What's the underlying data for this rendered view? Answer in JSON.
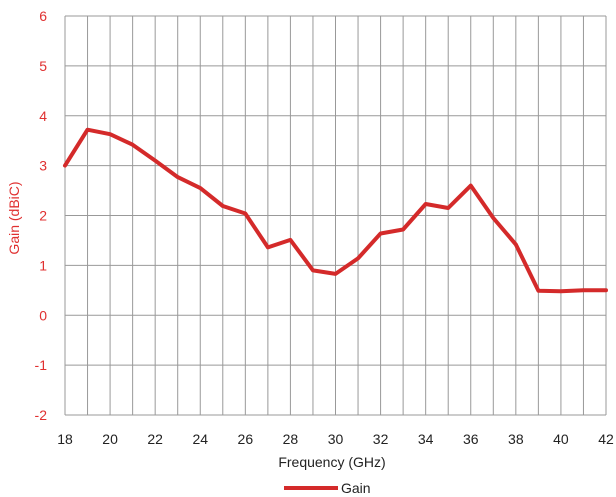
{
  "colors": {
    "series": "#d42a2a",
    "y_axis_text": "#e03030",
    "x_axis_text": "#222222",
    "grid": "#999999"
  },
  "chart_data": {
    "type": "line",
    "title": "",
    "xlabel": "Frequency (GHz)",
    "ylabel": "Gain (dBiC)",
    "xlim": [
      18,
      42
    ],
    "ylim": [
      -2,
      6
    ],
    "x_ticks": [
      18,
      20,
      22,
      24,
      26,
      28,
      30,
      32,
      34,
      36,
      38,
      40,
      42
    ],
    "x_tick_labels": [
      "18",
      "20",
      "22",
      "24",
      "26",
      "28",
      "30",
      "32",
      "34",
      "36",
      "38",
      "40",
      "42"
    ],
    "y_ticks": [
      -2,
      -1,
      0,
      1,
      2,
      3,
      4,
      5,
      6
    ],
    "y_tick_labels": [
      "-2",
      "-1",
      "0",
      "1",
      "2",
      "3",
      "4",
      "5",
      "6"
    ],
    "grid": true,
    "legend_position": "bottom",
    "series": [
      {
        "name": "Gain",
        "x": [
          18,
          19,
          20,
          21,
          22,
          23,
          24,
          25,
          26,
          27,
          28,
          29,
          30,
          31,
          32,
          33,
          34,
          35,
          36,
          37,
          38,
          39,
          40,
          41,
          42
        ],
        "y": [
          3.0,
          3.72,
          3.63,
          3.42,
          3.1,
          2.77,
          2.55,
          2.19,
          2.04,
          1.36,
          1.51,
          0.9,
          0.83,
          1.14,
          1.64,
          1.72,
          2.23,
          2.15,
          2.6,
          1.95,
          1.42,
          0.49,
          0.48,
          0.5,
          0.5
        ]
      }
    ]
  }
}
